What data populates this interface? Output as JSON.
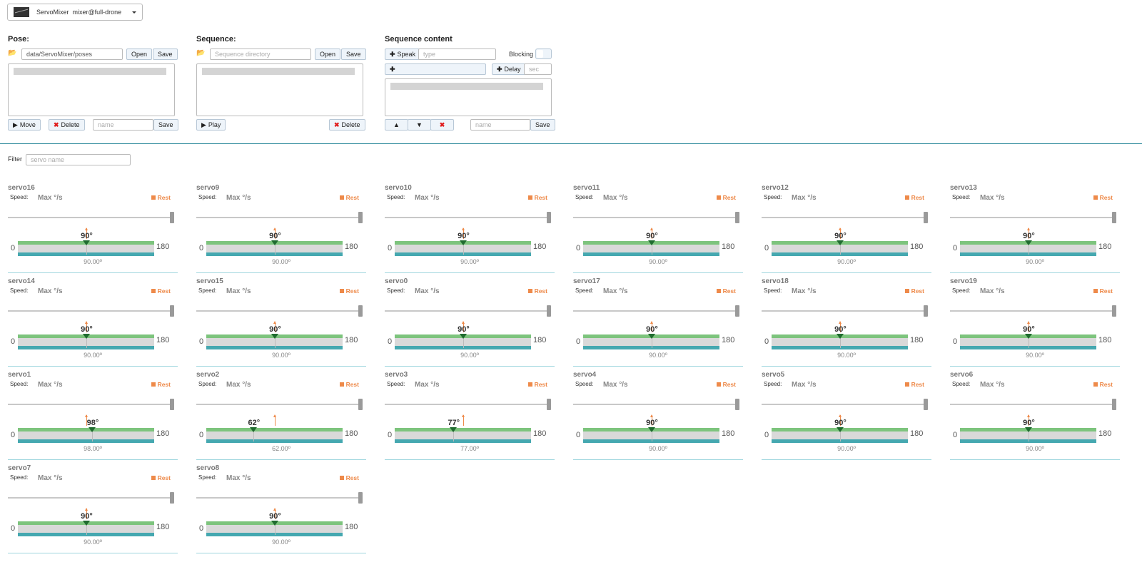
{
  "app": {
    "name": "ServoMixer",
    "user": "mixer@full-drone"
  },
  "pose": {
    "title": "Pose:",
    "path": "data/ServoMixer/poses",
    "open_label": "Open",
    "save_label": "Save",
    "move_label": "Move",
    "delete_label": "Delete",
    "name_placeholder": "name",
    "save2_label": "Save"
  },
  "sequence": {
    "title": "Sequence:",
    "dir_placeholder": "Sequence directory",
    "open_label": "Open",
    "save_label": "Save",
    "play_label": "Play",
    "delete_label": "Delete"
  },
  "content": {
    "title": "Sequence content",
    "speak_label": "Speak",
    "type_placeholder": "type",
    "blocking_label": "Blocking",
    "delay_label": "Delay",
    "sec_placeholder": "sec",
    "name_placeholder": "name",
    "save_label": "Save"
  },
  "filter": {
    "label": "Filter",
    "placeholder": "servo name"
  },
  "servo_common": {
    "speed_label": "Speed:",
    "speed_value": "Max °/s",
    "rest_label": "Rest",
    "min": "0",
    "max": "180"
  },
  "colors": {
    "accent": "#ee8a4a",
    "green": "#7dc47d",
    "teal": "#45a8b0",
    "divider": "#2b8a9a"
  },
  "servos": [
    {
      "name": "servo16",
      "angle": 90,
      "target": 90,
      "angle_label": "90°",
      "value_label": "90.00º"
    },
    {
      "name": "servo9",
      "angle": 90,
      "target": 90,
      "angle_label": "90°",
      "value_label": "90.00º"
    },
    {
      "name": "servo10",
      "angle": 90,
      "target": 90,
      "angle_label": "90°",
      "value_label": "90.00º"
    },
    {
      "name": "servo11",
      "angle": 90,
      "target": 90,
      "angle_label": "90°",
      "value_label": "90.00º"
    },
    {
      "name": "servo12",
      "angle": 90,
      "target": 90,
      "angle_label": "90°",
      "value_label": "90.00º"
    },
    {
      "name": "servo13",
      "angle": 90,
      "target": 90,
      "angle_label": "90°",
      "value_label": "90.00º"
    },
    {
      "name": "servo14",
      "angle": 90,
      "target": 90,
      "angle_label": "90°",
      "value_label": "90.00º"
    },
    {
      "name": "servo15",
      "angle": 90,
      "target": 90,
      "angle_label": "90°",
      "value_label": "90.00º"
    },
    {
      "name": "servo0",
      "angle": 90,
      "target": 90,
      "angle_label": "90°",
      "value_label": "90.00º"
    },
    {
      "name": "servo17",
      "angle": 90,
      "target": 90,
      "angle_label": "90°",
      "value_label": "90.00º"
    },
    {
      "name": "servo18",
      "angle": 90,
      "target": 90,
      "angle_label": "90°",
      "value_label": "90.00º"
    },
    {
      "name": "servo19",
      "angle": 90,
      "target": 90,
      "angle_label": "90°",
      "value_label": "90.00º"
    },
    {
      "name": "servo1",
      "angle": 98,
      "target": 90,
      "angle_label": "98°",
      "value_label": "98.00º"
    },
    {
      "name": "servo2",
      "angle": 62,
      "target": 90,
      "angle_label": "62°",
      "value_label": "62.00º"
    },
    {
      "name": "servo3",
      "angle": 77,
      "target": 90,
      "angle_label": "77°",
      "value_label": "77.00º"
    },
    {
      "name": "servo4",
      "angle": 90,
      "target": 90,
      "angle_label": "90°",
      "value_label": "90.00º"
    },
    {
      "name": "servo5",
      "angle": 90,
      "target": 90,
      "angle_label": "90°",
      "value_label": "90.00º"
    },
    {
      "name": "servo6",
      "angle": 90,
      "target": 90,
      "angle_label": "90°",
      "value_label": "90.00º"
    },
    {
      "name": "servo7",
      "angle": 90,
      "target": 90,
      "angle_label": "90°",
      "value_label": "90.00º"
    },
    {
      "name": "servo8",
      "angle": 90,
      "target": 90,
      "angle_label": "90°",
      "value_label": "90.00º"
    }
  ]
}
